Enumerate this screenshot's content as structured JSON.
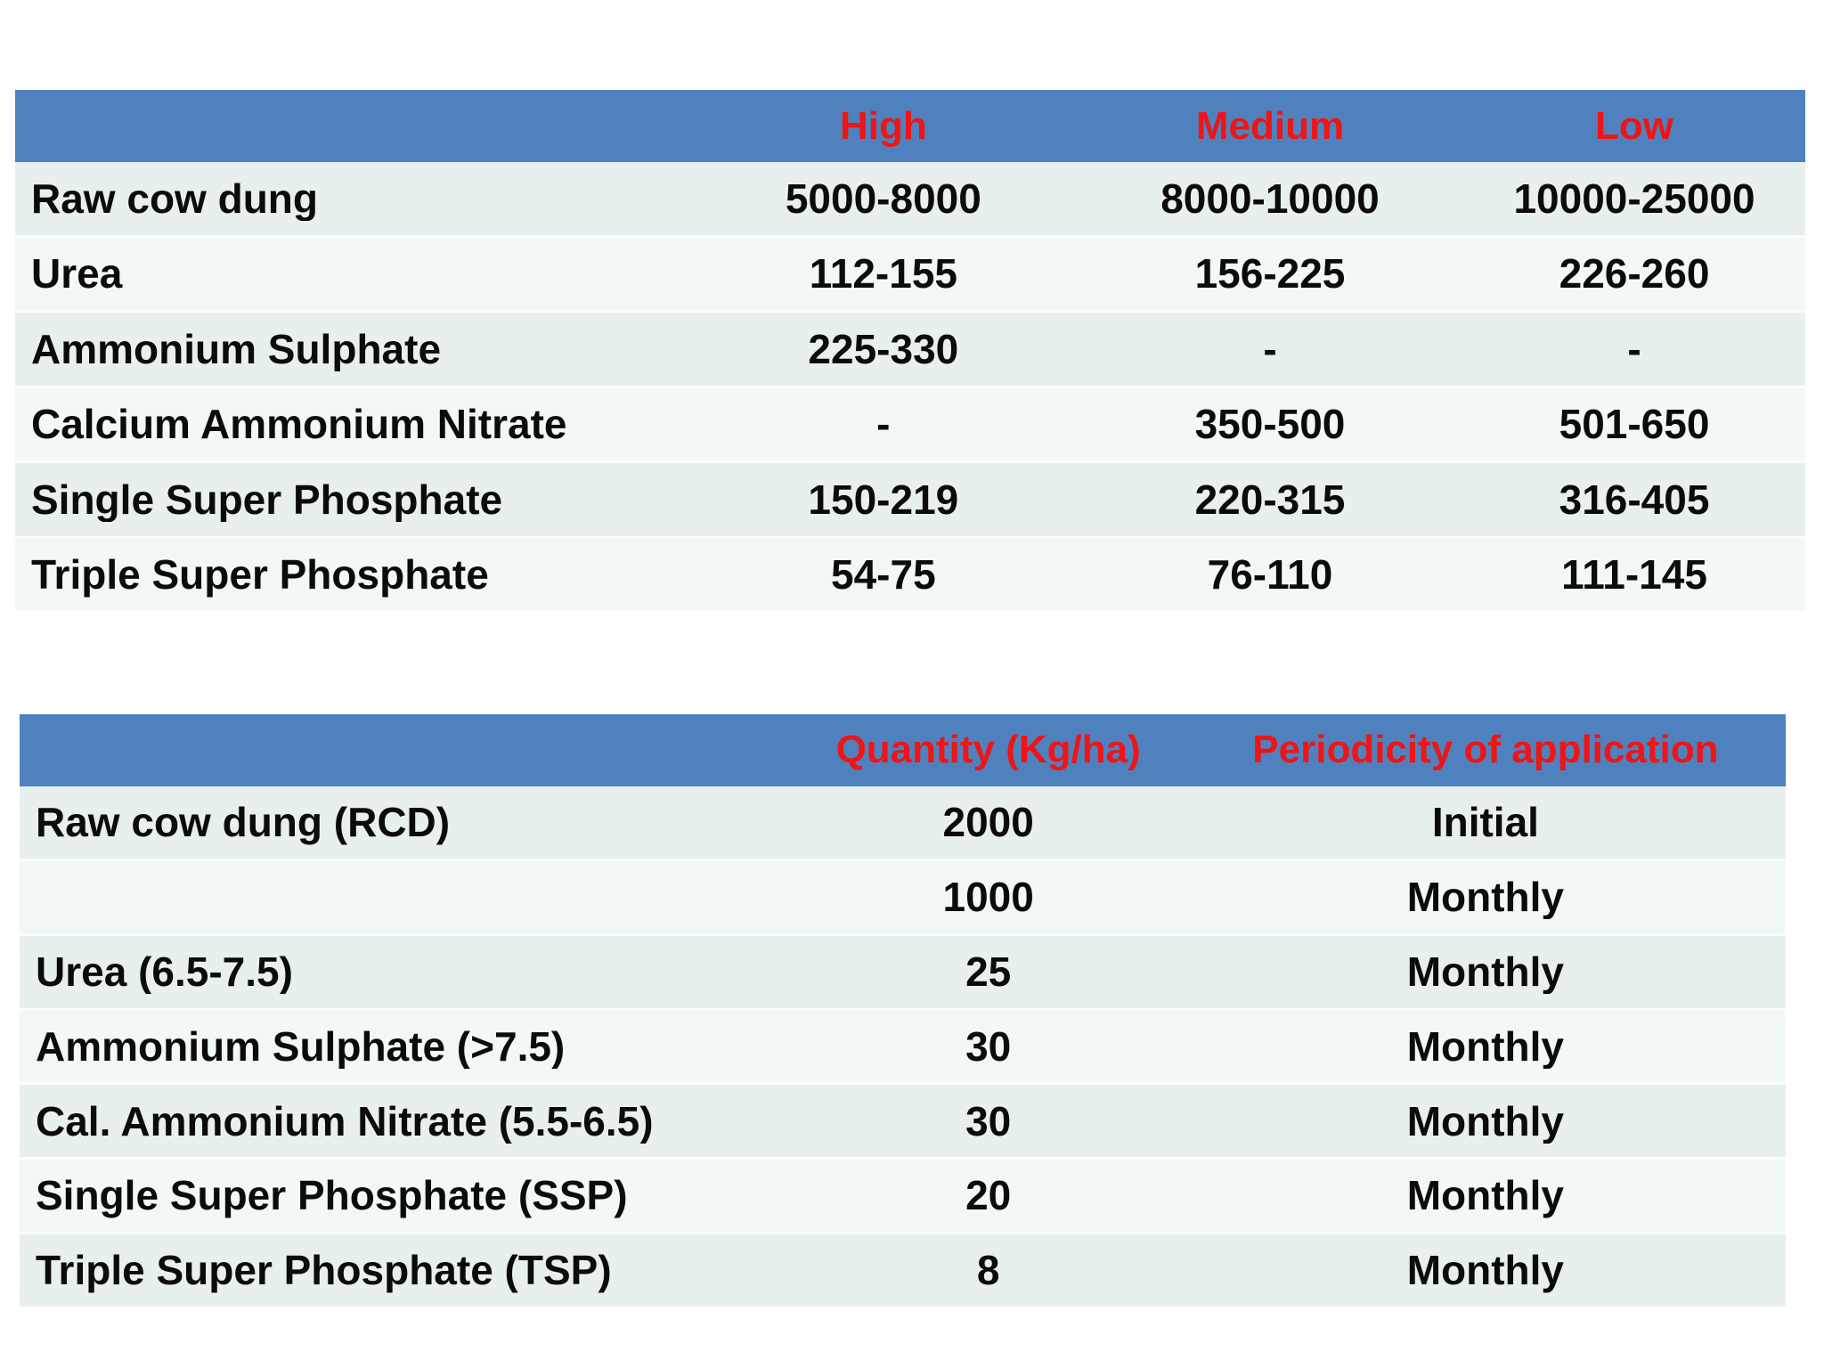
{
  "colors": {
    "header_bg": "#4f81bf",
    "header_text": "#f01414",
    "body_text": "#0b0b0b",
    "row_dark": "#e8efef",
    "row_light": "#f2f7f8",
    "row_separator": "#fafdfd",
    "page_bg": "#ffffff"
  },
  "table1": {
    "columns": [
      "",
      "High",
      "Medium",
      "Low"
    ],
    "rows": [
      {
        "name": "Raw cow dung",
        "high": "5000-8000",
        "medium": "8000-10000",
        "low": "10000-25000"
      },
      {
        "name": "Urea",
        "high": "112-155",
        "medium": "156-225",
        "low": "226-260"
      },
      {
        "name": "Ammonium Sulphate",
        "high": "225-330",
        "medium": "-",
        "low": "-"
      },
      {
        "name": "Calcium Ammonium Nitrate",
        "high": "-",
        "medium": "350-500",
        "low": "501-650"
      },
      {
        "name": "Single Super Phosphate",
        "high": "150-219",
        "medium": "220-315",
        "low": "316-405"
      },
      {
        "name": "Triple Super Phosphate",
        "high": "54-75",
        "medium": "76-110",
        "low": "111-145"
      }
    ]
  },
  "table2": {
    "columns": [
      "",
      "Quantity (Kg/ha)",
      "Periodicity of application"
    ],
    "rows": [
      {
        "name": "Raw cow dung (RCD)",
        "quantity": "2000",
        "periodicity": "Initial"
      },
      {
        "name": "",
        "quantity": "1000",
        "periodicity": "Monthly"
      },
      {
        "name": "Urea (6.5-7.5)",
        "quantity": "25",
        "periodicity": "Monthly"
      },
      {
        "name": "Ammonium Sulphate (>7.5)",
        "quantity": "30",
        "periodicity": "Monthly"
      },
      {
        "name": "Cal. Ammonium Nitrate (5.5-6.5)",
        "quantity": "30",
        "periodicity": "Monthly"
      },
      {
        "name": "Single Super Phosphate (SSP)",
        "quantity": "20",
        "periodicity": "Monthly"
      },
      {
        "name": "Triple Super Phosphate (TSP)",
        "quantity": "8",
        "periodicity": "Monthly"
      }
    ]
  }
}
